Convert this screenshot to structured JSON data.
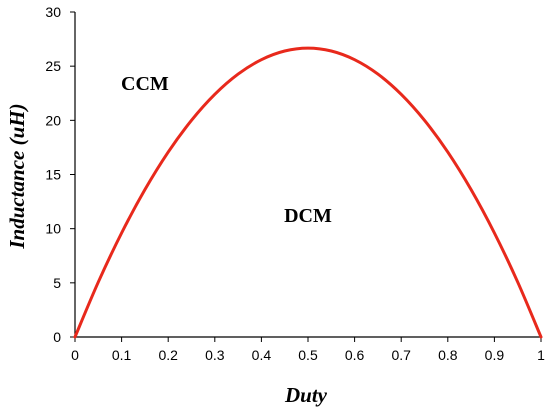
{
  "chart_data": {
    "type": "line",
    "title": "",
    "xlabel": "Duty",
    "ylabel": "Inductance (uH)",
    "xlim": [
      0,
      1
    ],
    "ylim": [
      0,
      30
    ],
    "x_ticks": [
      0,
      0.1,
      0.2,
      0.3,
      0.4,
      0.5,
      0.6,
      0.7,
      0.8,
      0.9,
      1
    ],
    "x_tick_labels": [
      "0",
      "0.1",
      "0.2",
      "0.3",
      "0.4",
      "0.5",
      "0.6",
      "0.7",
      "0.8",
      "0.9",
      "1"
    ],
    "y_ticks": [
      0,
      5,
      10,
      15,
      20,
      25,
      30
    ],
    "y_tick_labels": [
      "0",
      "5",
      "10",
      "15",
      "20",
      "25",
      "30"
    ],
    "grid": false,
    "legend": "none",
    "series": [
      {
        "color": "#e8291c",
        "x": [
          0,
          0.05,
          0.1,
          0.15,
          0.2,
          0.25,
          0.3,
          0.35,
          0.4,
          0.45,
          0.5,
          0.55,
          0.6,
          0.65,
          0.7,
          0.75,
          0.8,
          0.85,
          0.9,
          0.95,
          1
        ],
        "y": [
          0,
          5.07,
          9.6,
          13.6,
          17.07,
          20.0,
          22.4,
          24.27,
          25.6,
          26.4,
          26.67,
          26.4,
          25.6,
          24.27,
          22.4,
          20.0,
          17.07,
          13.6,
          9.6,
          5.07,
          0
        ]
      }
    ],
    "annotations": [
      {
        "text": "CCM",
        "x": 0.15,
        "y": 22.8
      },
      {
        "text": "DCM",
        "x": 0.5,
        "y": 10.6
      }
    ]
  }
}
